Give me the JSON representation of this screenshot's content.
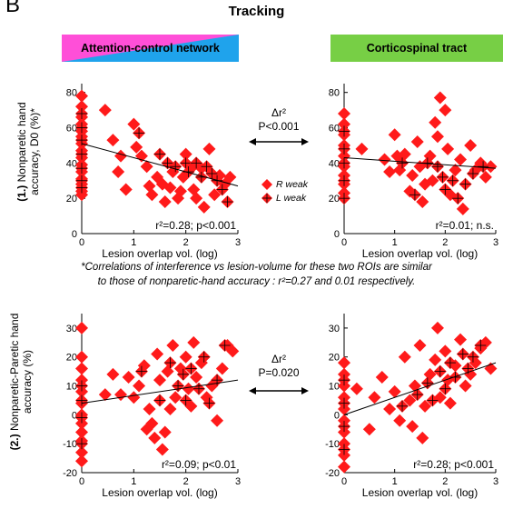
{
  "figure": {
    "panel_letter": "B",
    "title": "Tracking",
    "banner_left": "Attention-control network",
    "banner_right": "Corticospinal tract",
    "row1_ylabel_prefix": "(1.)",
    "row1_ylabel_line1": "Nonparetic hand",
    "row1_ylabel_line2": "accuracy, D0 (%)*",
    "row2_ylabel_prefix": "(2.)",
    "row2_ylabel_line1": "Nonparetic-Paretic hand",
    "row2_ylabel_line2": "accuracy (%)",
    "compare1_label": "Δr²",
    "compare1_p": "P<0.001",
    "compare2_label": "Δr²",
    "compare2_p": "P=0.020",
    "legend_r": "R weak",
    "legend_l": "L weak",
    "note_line1": "*Correlations of interference vs lesion-volume for these two ROIs are similar",
    "note_line2": "to those of nonparetic-hand accuracy : r²=0.27 and 0.01 respectively.",
    "colors": {
      "marker": "#ff1a1a",
      "cross": "#000000",
      "fit": "#000000"
    }
  },
  "chart_data": [
    {
      "type": "scatter",
      "id": "row1-attention",
      "xlabel": "Lesion overlap vol. (log)",
      "xlim": [
        0,
        3
      ],
      "ylim": [
        0,
        85
      ],
      "xticks": [
        0,
        1,
        2,
        3
      ],
      "yticks": [
        0,
        20,
        40,
        60,
        80
      ],
      "annotation": "r²=0.28; p<0.001",
      "fit": {
        "x": [
          0,
          3
        ],
        "y": [
          51,
          27
        ]
      },
      "series": [
        {
          "legend": "R weak",
          "points": [
            [
              0,
              78
            ],
            [
              0,
              72
            ],
            [
              0,
              66
            ],
            [
              0,
              62
            ],
            [
              0,
              58
            ],
            [
              0,
              55
            ],
            [
              0,
              51
            ],
            [
              0,
              47
            ],
            [
              0,
              43
            ],
            [
              0,
              39
            ],
            [
              0,
              35
            ],
            [
              0,
              31
            ],
            [
              0,
              28
            ],
            [
              0,
              24
            ],
            [
              0,
              22
            ],
            [
              0.45,
              70
            ],
            [
              0.6,
              53
            ],
            [
              0.75,
              44
            ],
            [
              1.0,
              62
            ],
            [
              1.05,
              49
            ],
            [
              1.15,
              44
            ],
            [
              1.25,
              38
            ],
            [
              1.3,
              27
            ],
            [
              1.35,
              22
            ],
            [
              1.45,
              32
            ],
            [
              1.55,
              28
            ],
            [
              1.6,
              18
            ],
            [
              1.7,
              26
            ],
            [
              1.75,
              35
            ],
            [
              1.85,
              20
            ],
            [
              1.95,
              32
            ],
            [
              2.0,
              45
            ],
            [
              2.1,
              37
            ],
            [
              2.15,
              25
            ],
            [
              2.2,
              20
            ],
            [
              2.35,
              15
            ],
            [
              2.45,
              48
            ],
            [
              2.55,
              22
            ],
            [
              2.65,
              33
            ],
            [
              2.75,
              28
            ],
            [
              2.85,
              32
            ],
            [
              0.85,
              25
            ],
            [
              0.7,
              35
            ],
            [
              1.9,
              24
            ],
            [
              2.3,
              37
            ]
          ]
        },
        {
          "legend": "L weak",
          "points": [
            [
              0,
              68
            ],
            [
              0,
              60
            ],
            [
              0,
              53
            ],
            [
              0,
              45
            ],
            [
              0,
              37
            ],
            [
              0,
              30
            ],
            [
              0,
              26
            ],
            [
              1.1,
              57
            ],
            [
              1.5,
              45
            ],
            [
              1.65,
              40
            ],
            [
              1.8,
              38
            ],
            [
              2.0,
              40
            ],
            [
              2.05,
              35
            ],
            [
              2.2,
              40
            ],
            [
              2.3,
              32
            ],
            [
              2.4,
              38
            ],
            [
              2.5,
              34
            ],
            [
              2.6,
              30
            ],
            [
              2.7,
              25
            ],
            [
              2.8,
              18
            ]
          ]
        }
      ]
    },
    {
      "type": "scatter",
      "id": "row1-corticospinal",
      "xlabel": "Lesion overlap vol. (log)",
      "xlim": [
        0,
        3
      ],
      "ylim": [
        0,
        85
      ],
      "xticks": [
        0,
        1,
        2,
        3
      ],
      "yticks": [
        0,
        20,
        40,
        60,
        80
      ],
      "annotation": "r²=0.01; n.s.",
      "fit": {
        "x": [
          0,
          3
        ],
        "y": [
          43,
          37
        ]
      },
      "series": [
        {
          "legend": "R weak",
          "points": [
            [
              0,
              68
            ],
            [
              0,
              62
            ],
            [
              0,
              56
            ],
            [
              0,
              50
            ],
            [
              0,
              44
            ],
            [
              0,
              38
            ],
            [
              0,
              33
            ],
            [
              0,
              28
            ],
            [
              0,
              23
            ],
            [
              0.35,
              48
            ],
            [
              0.8,
              42
            ],
            [
              1.0,
              56
            ],
            [
              1.05,
              44
            ],
            [
              1.1,
              36
            ],
            [
              1.2,
              45
            ],
            [
              1.3,
              24
            ],
            [
              1.35,
              33
            ],
            [
              1.45,
              52
            ],
            [
              1.5,
              38
            ],
            [
              1.6,
              28
            ],
            [
              1.7,
              44
            ],
            [
              1.75,
              30
            ],
            [
              1.8,
              63
            ],
            [
              1.85,
              55
            ],
            [
              1.9,
              77
            ],
            [
              2.0,
              70
            ],
            [
              2.05,
              48
            ],
            [
              2.1,
              22
            ],
            [
              2.2,
              36
            ],
            [
              2.3,
              42
            ],
            [
              2.35,
              14
            ],
            [
              2.5,
              50
            ],
            [
              2.6,
              36
            ],
            [
              2.7,
              40
            ],
            [
              2.8,
              32
            ],
            [
              2.9,
              38
            ],
            [
              1.55,
              18
            ],
            [
              0.9,
              35
            ]
          ]
        },
        {
          "legend": "L weak",
          "points": [
            [
              0,
              58
            ],
            [
              0,
              48
            ],
            [
              0,
              40
            ],
            [
              0,
              30
            ],
            [
              0,
              20
            ],
            [
              1.15,
              40
            ],
            [
              1.4,
              22
            ],
            [
              1.65,
              40
            ],
            [
              1.85,
              38
            ],
            [
              1.95,
              32
            ],
            [
              2.0,
              25
            ],
            [
              2.15,
              30
            ],
            [
              2.25,
              20
            ],
            [
              2.4,
              28
            ],
            [
              2.55,
              34
            ],
            [
              2.75,
              38
            ]
          ]
        }
      ]
    },
    {
      "type": "scatter",
      "id": "row2-attention",
      "xlabel": "Lesion overlap vol. (log)",
      "xlim": [
        0,
        3
      ],
      "ylim": [
        -20,
        35
      ],
      "xticks": [
        0,
        1,
        2,
        3
      ],
      "yticks": [
        -20,
        -10,
        0,
        10,
        20,
        30
      ],
      "annotation": "r²=0.09; p<0.01",
      "fit": {
        "x": [
          0,
          3
        ],
        "y": [
          4,
          12
        ]
      },
      "series": [
        {
          "legend": "R weak",
          "points": [
            [
              0,
              30
            ],
            [
              0,
              20
            ],
            [
              0,
              16
            ],
            [
              0,
              12
            ],
            [
              0,
              8
            ],
            [
              0,
              4
            ],
            [
              0,
              0
            ],
            [
              0,
              -3
            ],
            [
              0,
              -6
            ],
            [
              0,
              -9
            ],
            [
              0,
              -13
            ],
            [
              0,
              -16
            ],
            [
              0.45,
              7
            ],
            [
              0.6,
              14
            ],
            [
              0.75,
              7
            ],
            [
              0.9,
              13
            ],
            [
              1.0,
              6
            ],
            [
              1.1,
              10
            ],
            [
              1.2,
              17
            ],
            [
              1.3,
              2
            ],
            [
              1.35,
              -3
            ],
            [
              1.4,
              -8
            ],
            [
              1.45,
              21
            ],
            [
              1.5,
              12
            ],
            [
              1.55,
              -12
            ],
            [
              1.6,
              -6
            ],
            [
              1.65,
              15
            ],
            [
              1.75,
              24
            ],
            [
              1.8,
              6
            ],
            [
              1.9,
              16
            ],
            [
              2.0,
              20
            ],
            [
              2.05,
              9
            ],
            [
              2.1,
              3
            ],
            [
              2.2,
              13
            ],
            [
              2.3,
              18
            ],
            [
              2.4,
              6
            ],
            [
              2.5,
              10
            ],
            [
              2.6,
              -2
            ],
            [
              2.7,
              16
            ],
            [
              2.8,
              24
            ],
            [
              2.9,
              22
            ],
            [
              1.25,
              -5
            ],
            [
              1.7,
              2
            ],
            [
              2.15,
              25
            ]
          ]
        },
        {
          "legend": "L weak",
          "points": [
            [
              0,
              10
            ],
            [
              0,
              5
            ],
            [
              0,
              -1
            ],
            [
              0,
              -10
            ],
            [
              1.15,
              15
            ],
            [
              1.5,
              5
            ],
            [
              1.7,
              18
            ],
            [
              1.85,
              10
            ],
            [
              1.95,
              14
            ],
            [
              2.0,
              5
            ],
            [
              2.1,
              16
            ],
            [
              2.25,
              9
            ],
            [
              2.35,
              20
            ],
            [
              2.45,
              4
            ],
            [
              2.6,
              12
            ],
            [
              2.75,
              24
            ]
          ]
        }
      ]
    },
    {
      "type": "scatter",
      "id": "row2-corticospinal",
      "xlabel": "Lesion overlap vol. (log)",
      "xlim": [
        0,
        3
      ],
      "ylim": [
        -20,
        35
      ],
      "xticks": [
        0,
        1,
        2,
        3
      ],
      "yticks": [
        -20,
        -10,
        0,
        10,
        20,
        30
      ],
      "annotation": "r²=0.28; p<0.001",
      "fit": {
        "x": [
          0,
          3
        ],
        "y": [
          0,
          18
        ]
      },
      "series": [
        {
          "legend": "R weak",
          "points": [
            [
              0,
              18
            ],
            [
              0,
              14
            ],
            [
              0,
              10
            ],
            [
              0,
              6
            ],
            [
              0,
              2
            ],
            [
              0,
              -2
            ],
            [
              0,
              -6
            ],
            [
              0,
              -10
            ],
            [
              0,
              -14
            ],
            [
              0,
              -18
            ],
            [
              0.25,
              9
            ],
            [
              0.5,
              -5
            ],
            [
              0.75,
              13
            ],
            [
              0.9,
              2
            ],
            [
              1.0,
              8
            ],
            [
              1.1,
              -2
            ],
            [
              1.2,
              20
            ],
            [
              1.3,
              5
            ],
            [
              1.4,
              10
            ],
            [
              1.5,
              24
            ],
            [
              1.55,
              -8
            ],
            [
              1.6,
              3
            ],
            [
              1.7,
              14
            ],
            [
              1.8,
              19
            ],
            [
              1.85,
              30
            ],
            [
              1.9,
              6
            ],
            [
              2.0,
              22
            ],
            [
              2.05,
              12
            ],
            [
              2.1,
              4
            ],
            [
              2.2,
              17
            ],
            [
              2.3,
              26
            ],
            [
              2.4,
              10
            ],
            [
              2.5,
              14
            ],
            [
              2.6,
              18
            ],
            [
              2.7,
              23
            ],
            [
              2.8,
              25
            ],
            [
              2.9,
              16
            ],
            [
              1.35,
              -4
            ],
            [
              0.6,
              6
            ]
          ]
        },
        {
          "legend": "L weak",
          "points": [
            [
              0,
              12
            ],
            [
              0,
              4
            ],
            [
              0,
              -4
            ],
            [
              0,
              -12
            ],
            [
              1.15,
              3
            ],
            [
              1.45,
              7
            ],
            [
              1.65,
              11
            ],
            [
              1.75,
              5
            ],
            [
              1.9,
              15
            ],
            [
              2.0,
              9
            ],
            [
              2.1,
              18
            ],
            [
              2.2,
              13
            ],
            [
              2.35,
              21
            ],
            [
              2.45,
              16
            ],
            [
              2.55,
              20
            ],
            [
              2.7,
              24
            ]
          ]
        }
      ]
    }
  ]
}
